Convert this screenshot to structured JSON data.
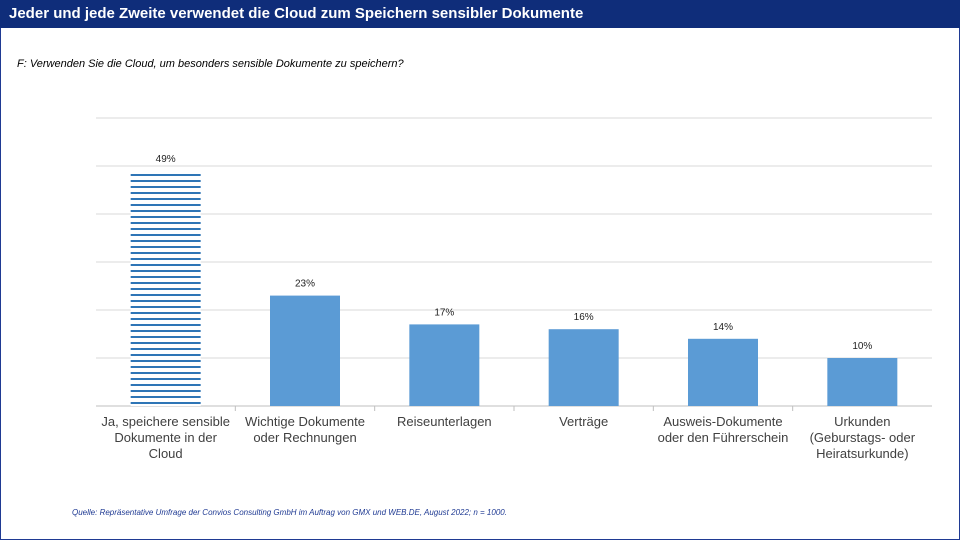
{
  "header": {
    "title": "Jeder und jede Zweite verwendet die Cloud zum Speichern sensibler Dokumente"
  },
  "question": "F: Verwenden Sie die Cloud, um besonders sensible Dokumente zu speichern?",
  "source": "Quelle: Repräsentative Umfrage der Convios Consulting GmbH im Auftrag von GMX und WEB.DE, August 2022; n = 1000.",
  "colors": {
    "header_bg": "#0f2d7a",
    "bar": "#5b9bd5",
    "grid": "#d9d9d9",
    "source_text": "#1f3a93"
  },
  "chart_data": {
    "type": "bar",
    "categories": [
      [
        "Ja, speichere sensible",
        "Dokumente in der",
        "Cloud"
      ],
      [
        "Wichtige Dokumente",
        "oder Rechnungen"
      ],
      [
        "Reiseunterlagen"
      ],
      [
        "Verträge"
      ],
      [
        "Ausweis-Dokumente",
        "oder den Führerschein"
      ],
      [
        "Urkunden",
        "(Geburstags- oder",
        "Heiratsurkunde)"
      ]
    ],
    "values": [
      49,
      23,
      17,
      16,
      14,
      10
    ],
    "value_labels": [
      "49%",
      "23%",
      "17%",
      "16%",
      "14%",
      "10%"
    ],
    "bar_styles": [
      "striped",
      "solid",
      "solid",
      "solid",
      "solid",
      "solid"
    ],
    "ylim": [
      0,
      60
    ],
    "grid": true,
    "title": "",
    "xlabel": "",
    "ylabel": ""
  }
}
